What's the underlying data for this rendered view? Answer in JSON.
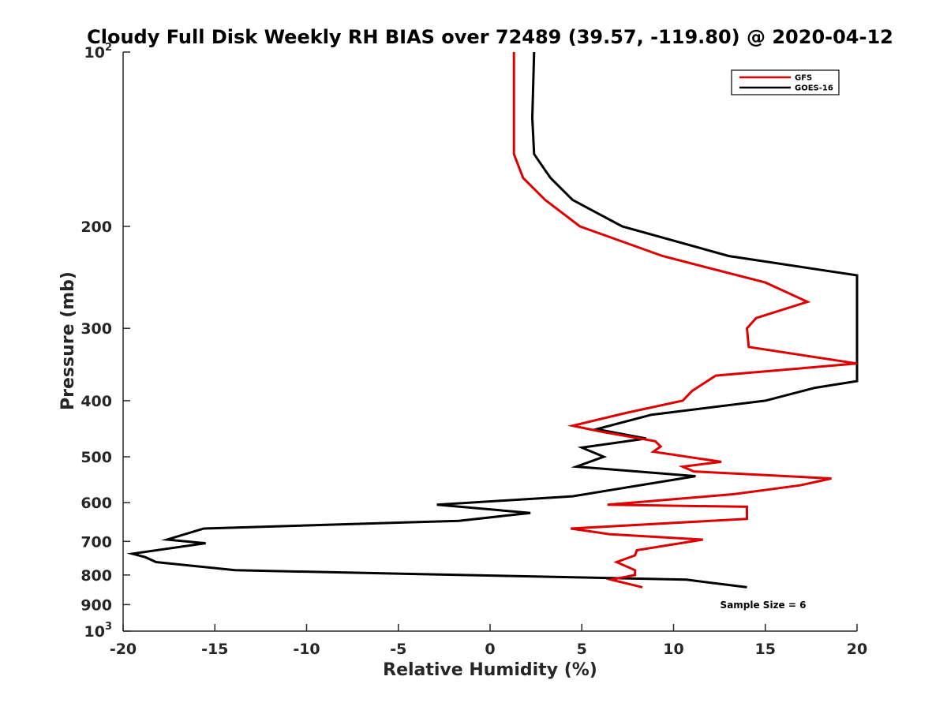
{
  "chart_data": {
    "type": "line",
    "title": "Cloudy Full Disk Weekly RH BIAS over 72489 (39.57, -119.80) @ 2020-04-12",
    "xlabel": "Relative Humidity (%)",
    "ylabel": "Pressure (mb)",
    "xlim": [
      -20,
      20
    ],
    "ylim": [
      100,
      1000
    ],
    "yscale": "log",
    "y_reversed": true,
    "x_ticks": [
      -20,
      -15,
      -10,
      -5,
      0,
      5,
      10,
      15,
      20
    ],
    "x_tick_labels": [
      "-20",
      "-15",
      "-10",
      "-5",
      "0",
      "5",
      "10",
      "15",
      "20"
    ],
    "y_ticks": [
      100,
      200,
      300,
      400,
      500,
      600,
      700,
      800,
      900,
      1000
    ],
    "y_tick_labels": [
      {
        "base": "10",
        "exp": "2"
      },
      {
        "base": "200",
        "exp": ""
      },
      {
        "base": "300",
        "exp": ""
      },
      {
        "base": "400",
        "exp": ""
      },
      {
        "base": "500",
        "exp": ""
      },
      {
        "base": "600",
        "exp": ""
      },
      {
        "base": "700",
        "exp": ""
      },
      {
        "base": "800",
        "exp": ""
      },
      {
        "base": "900",
        "exp": ""
      },
      {
        "base": "10",
        "exp": "3"
      }
    ],
    "grid": false,
    "legend_position": "top-right",
    "annotation": "Sample Size = 6",
    "series": [
      {
        "name": "GFS",
        "color": "#dd0000",
        "points": [
          [
            1.3,
            100
          ],
          [
            1.3,
            150
          ],
          [
            1.8,
            165
          ],
          [
            3.0,
            180
          ],
          [
            4.9,
            200
          ],
          [
            9.4,
            225
          ],
          [
            15.0,
            250
          ],
          [
            17.3,
            270
          ],
          [
            14.5,
            288
          ],
          [
            14.0,
            300
          ],
          [
            14.1,
            323
          ],
          [
            20.0,
            345
          ],
          [
            12.3,
            362
          ],
          [
            11.0,
            385
          ],
          [
            10.5,
            400
          ],
          [
            7.4,
            420
          ],
          [
            4.5,
            442
          ],
          [
            6.0,
            452
          ],
          [
            9.0,
            470
          ],
          [
            9.3,
            480
          ],
          [
            8.9,
            490
          ],
          [
            12.6,
            510
          ],
          [
            10.5,
            520
          ],
          [
            11.1,
            530
          ],
          [
            18.6,
            545
          ],
          [
            16.9,
            560
          ],
          [
            13.3,
            580
          ],
          [
            6.4,
            605
          ],
          [
            14.0,
            610
          ],
          [
            14.0,
            640
          ],
          [
            4.4,
            665
          ],
          [
            6.5,
            680
          ],
          [
            11.6,
            695
          ],
          [
            8.0,
            725
          ],
          [
            7.9,
            740
          ],
          [
            6.9,
            760
          ],
          [
            7.9,
            785
          ],
          [
            7.9,
            800
          ],
          [
            6.6,
            815
          ],
          [
            8.3,
            840
          ]
        ]
      },
      {
        "name": "GOES-16",
        "color": "#000000",
        "points": [
          [
            2.4,
            100
          ],
          [
            2.3,
            130
          ],
          [
            2.4,
            150
          ],
          [
            3.0,
            160
          ],
          [
            3.3,
            165
          ],
          [
            4.5,
            180
          ],
          [
            7.2,
            200
          ],
          [
            13.0,
            225
          ],
          [
            20.0,
            243
          ],
          [
            20.0,
            370
          ],
          [
            17.7,
            380
          ],
          [
            15.0,
            400
          ],
          [
            8.8,
            423
          ],
          [
            5.8,
            448
          ],
          [
            8.5,
            465
          ],
          [
            5.0,
            482
          ],
          [
            6.2,
            500
          ],
          [
            4.7,
            520
          ],
          [
            11.2,
            540
          ],
          [
            4.5,
            585
          ],
          [
            -2.9,
            605
          ],
          [
            2.2,
            625
          ],
          [
            -1.7,
            645
          ],
          [
            -15.6,
            665
          ],
          [
            -17.6,
            695
          ],
          [
            -15.5,
            705
          ],
          [
            -19.5,
            735
          ],
          [
            -18.8,
            745
          ],
          [
            -18.2,
            760
          ],
          [
            -13.9,
            785
          ],
          [
            10.7,
            815
          ],
          [
            14.0,
            840
          ]
        ]
      }
    ]
  }
}
